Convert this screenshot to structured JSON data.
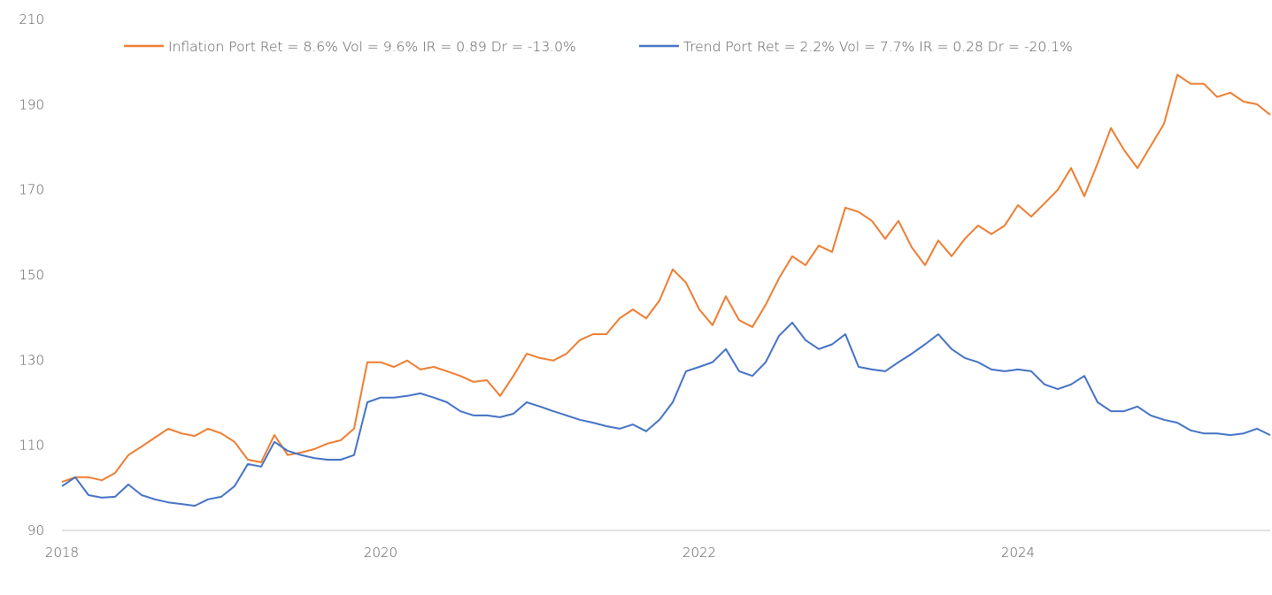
{
  "chart_data": {
    "type": "line",
    "title": "",
    "xlabel": "",
    "ylabel": "",
    "ylim": [
      90,
      210
    ],
    "yticks": [
      90,
      110,
      130,
      150,
      170,
      190,
      210
    ],
    "xticks": [
      "2018",
      "2020",
      "2022",
      "2024"
    ],
    "xlim": [
      "2018-01",
      "2025-08"
    ],
    "grid": false,
    "legend_position": "top",
    "x_start": "2018-01",
    "x_frequency": "monthly",
    "series": [
      {
        "name": "Inflation Port Ret = 8.6% Vol = 9.6% IR = 0.89 Dr = -13.0%",
        "color": "#ED7D31",
        "values": [
          101.4,
          102.5,
          102.5,
          101.8,
          103.5,
          107.7,
          109.7,
          111.8,
          113.9,
          112.8,
          112.2,
          113.9,
          112.8,
          110.8,
          106.6,
          106.0,
          112.4,
          107.7,
          108.3,
          109.1,
          110.4,
          111.2,
          113.9,
          129.5,
          129.5,
          128.4,
          129.9,
          127.8,
          128.4,
          127.4,
          126.3,
          124.9,
          125.3,
          121.6,
          126.3,
          131.5,
          130.5,
          129.9,
          131.5,
          134.7,
          136.1,
          136.1,
          139.8,
          141.9,
          139.8,
          144.0,
          151.3,
          148.2,
          141.9,
          138.2,
          145.0,
          139.4,
          137.8,
          143.0,
          149.2,
          154.4,
          152.3,
          156.9,
          155.4,
          165.8,
          164.8,
          162.7,
          158.5,
          162.7,
          156.5,
          152.3,
          158.1,
          154.4,
          158.5,
          161.6,
          159.6,
          161.6,
          166.4,
          163.7,
          166.8,
          170.0,
          175.1,
          168.5,
          176.2,
          184.5,
          179.3,
          175.1,
          180.3,
          185.5,
          197.0,
          194.9,
          194.9,
          191.8,
          192.8,
          190.7,
          190.1,
          187.6
        ]
      },
      {
        "name": "Trend Port Ret = 2.2% Vol = 7.7% IR = 0.28 Dr = -20.1%",
        "color": "#4472C4",
        "values": [
          100.4,
          102.5,
          98.3,
          97.7,
          97.9,
          100.8,
          98.3,
          97.3,
          96.6,
          96.2,
          95.8,
          97.3,
          97.9,
          100.4,
          105.6,
          105.0,
          110.8,
          108.7,
          107.7,
          107.0,
          106.6,
          106.6,
          107.7,
          120.1,
          121.2,
          121.2,
          121.6,
          122.2,
          121.2,
          120.1,
          118.0,
          117.0,
          117.0,
          116.6,
          117.4,
          120.1,
          119.1,
          118.0,
          117.0,
          116.0,
          115.3,
          114.5,
          113.9,
          114.9,
          113.3,
          116.0,
          120.1,
          127.4,
          128.4,
          129.5,
          132.6,
          127.4,
          126.3,
          129.5,
          135.7,
          138.8,
          134.7,
          132.6,
          133.7,
          136.1,
          128.4,
          127.8,
          127.4,
          129.5,
          131.5,
          133.7,
          136.1,
          132.6,
          130.5,
          129.5,
          127.8,
          127.4,
          127.8,
          127.4,
          124.3,
          123.2,
          124.3,
          126.3,
          120.1,
          118.0,
          118.0,
          119.1,
          117.0,
          116.0,
          115.3,
          113.5,
          112.8,
          112.8,
          112.4,
          112.8,
          113.9,
          112.4
        ]
      }
    ]
  }
}
